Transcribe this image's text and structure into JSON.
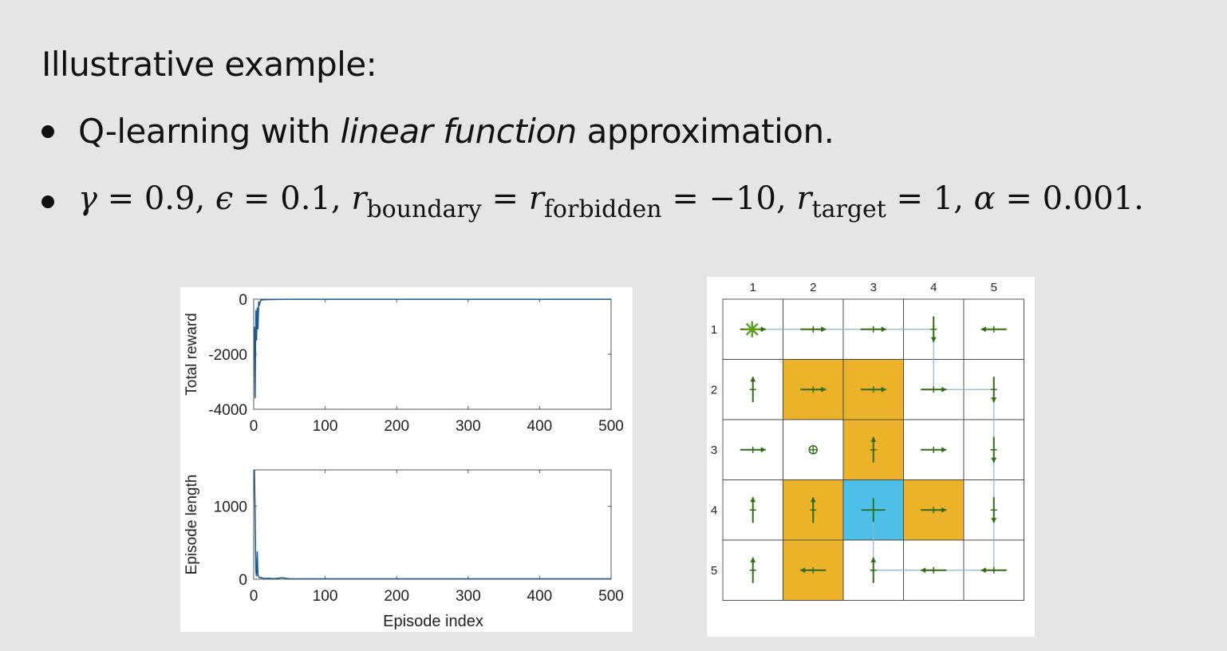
{
  "slide": {
    "heading": "Illustrative example:",
    "bullet1": {
      "pre": "Q-learning with ",
      "italic": "linear function",
      "post": " approximation."
    },
    "bullet2": {
      "gamma_sym": "γ",
      "gamma_eq": " = 0.9, ",
      "eps_sym": "ϵ",
      "eps_eq": " = 0.1, ",
      "r1_sym": "r",
      "r1_sub": "boundary",
      "eq_a": " = ",
      "r2_sym": "r",
      "r2_sub": "forbidden",
      "r2_eq": " = −10, ",
      "r3_sym": "r",
      "r3_sub": "target",
      "r3_eq": " = 1, ",
      "alpha_sym": "α",
      "alpha_eq": " = 0.001."
    }
  },
  "chart_data": [
    {
      "type": "line",
      "xlabel": "",
      "ylabel": "Total reward",
      "xlim": [
        0,
        500
      ],
      "ylim": [
        -4000,
        0
      ],
      "xticks": [
        "0",
        "100",
        "200",
        "300",
        "400",
        "500"
      ],
      "yticks": [
        "0",
        "-2000",
        "-4000"
      ],
      "color": "#1f5a8a",
      "series": [
        {
          "x": [
            1,
            2,
            3,
            4,
            5,
            6,
            7,
            8,
            10,
            12,
            15,
            20,
            30,
            50,
            100,
            200,
            300,
            400,
            500
          ],
          "y": [
            -1000,
            -3600,
            -400,
            -1500,
            -300,
            -1100,
            -80,
            -200,
            -40,
            -30,
            -20,
            -15,
            -10,
            -5,
            -5,
            -5,
            -5,
            -5,
            -5
          ]
        }
      ]
    },
    {
      "type": "line",
      "xlabel": "Episode index",
      "ylabel": "Episode length",
      "xlim": [
        0,
        500
      ],
      "ylim": [
        0,
        1500
      ],
      "xticks": [
        "0",
        "100",
        "200",
        "300",
        "400",
        "500"
      ],
      "yticks": [
        "1000",
        "0"
      ],
      "color": "#1f5a8a",
      "series": [
        {
          "x": [
            1,
            2,
            3,
            4,
            5,
            6,
            7,
            8,
            10,
            12,
            15,
            20,
            30,
            40,
            50,
            100,
            200,
            300,
            400,
            500
          ],
          "y": [
            1500,
            900,
            100,
            40,
            380,
            60,
            30,
            20,
            25,
            15,
            10,
            12,
            8,
            20,
            6,
            5,
            5,
            5,
            5,
            5
          ]
        }
      ]
    }
  ],
  "gridworld": {
    "col_labels": [
      "1",
      "2",
      "3",
      "4",
      "5"
    ],
    "row_labels": [
      "1",
      "2",
      "3",
      "4",
      "5"
    ],
    "forbidden_color": "#ecb22a",
    "target_color": "#4dbfe8",
    "arrow_color": "#2e6b12",
    "path_color": "#8fb6cc",
    "cell_types": [
      [
        "free",
        "free",
        "free",
        "free",
        "free"
      ],
      [
        "free",
        "forbidden",
        "forbidden",
        "free",
        "free"
      ],
      [
        "free",
        "free",
        "forbidden",
        "free",
        "free"
      ],
      [
        "free",
        "forbidden",
        "target",
        "forbidden",
        "free"
      ],
      [
        "free",
        "forbidden",
        "free",
        "free",
        "free"
      ]
    ],
    "policy": [
      [
        "right",
        "right",
        "right",
        "down",
        "left"
      ],
      [
        "up",
        "right",
        "right",
        "right",
        "down"
      ],
      [
        "right",
        "stay",
        "up",
        "right",
        "down"
      ],
      [
        "up",
        "up",
        "stay",
        "right",
        "down"
      ],
      [
        "up",
        "left",
        "up",
        "left",
        "left"
      ]
    ],
    "start": [
      1,
      1
    ],
    "trajectory": [
      [
        1,
        1
      ],
      [
        1,
        2
      ],
      [
        1,
        3
      ],
      [
        1,
        4
      ],
      [
        2,
        4
      ],
      [
        2,
        5
      ],
      [
        3,
        5
      ],
      [
        4,
        5
      ],
      [
        5,
        5
      ],
      [
        5,
        4
      ],
      [
        5,
        3
      ],
      [
        4,
        3
      ]
    ]
  }
}
